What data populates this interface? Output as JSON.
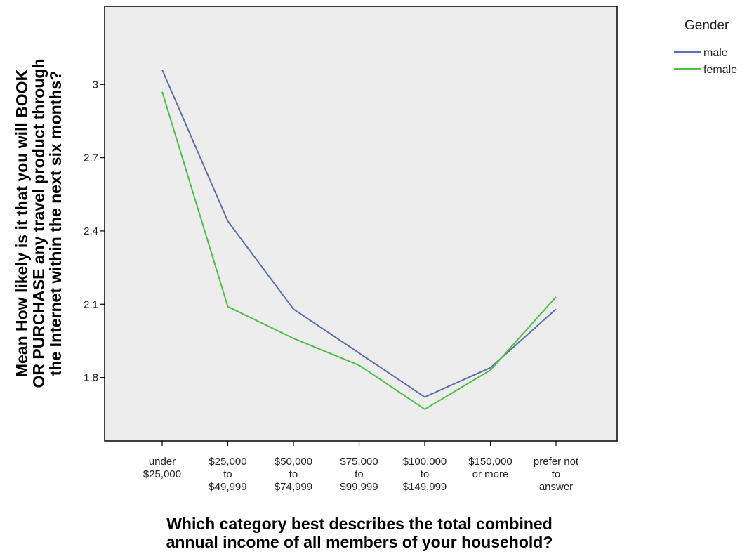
{
  "chart_data": {
    "type": "line",
    "categories": [
      [
        "under",
        "$25,000"
      ],
      [
        "$25,000",
        "to",
        "$49,999"
      ],
      [
        "$50,000",
        "to",
        "$74,999"
      ],
      [
        "$75,000",
        "to",
        "$99,999"
      ],
      [
        "$100,000",
        "to",
        "$149,999"
      ],
      [
        "$150,000",
        "or more"
      ],
      [
        "prefer not",
        "to",
        "answer"
      ]
    ],
    "series": [
      {
        "name": "male",
        "color": "#5b6fae",
        "values": [
          3.06,
          2.44,
          2.08,
          1.9,
          1.72,
          1.84,
          2.08
        ]
      },
      {
        "name": "female",
        "color": "#4ec046",
        "values": [
          2.97,
          2.09,
          1.96,
          1.85,
          1.67,
          1.83,
          2.13
        ]
      }
    ],
    "title": "",
    "xlabel": [
      "Which category best describes the total combined",
      "annual income of all members of your household?"
    ],
    "ylabel": [
      "Mean How likely is it that you will BOOK",
      "OR PURCHASE any travel product through",
      "the Internet within the next six months?"
    ],
    "ylim": [
      1.54,
      3.32
    ],
    "yticks": [
      1.8,
      2.1,
      2.4,
      2.7,
      3.0
    ],
    "ytick_labels": [
      "1.8",
      "2.1",
      "2.4",
      "2.7",
      "3"
    ],
    "grid": false,
    "plot_background": "#ededed",
    "legend": {
      "title": "Gender",
      "position": "top-right-outside"
    }
  }
}
